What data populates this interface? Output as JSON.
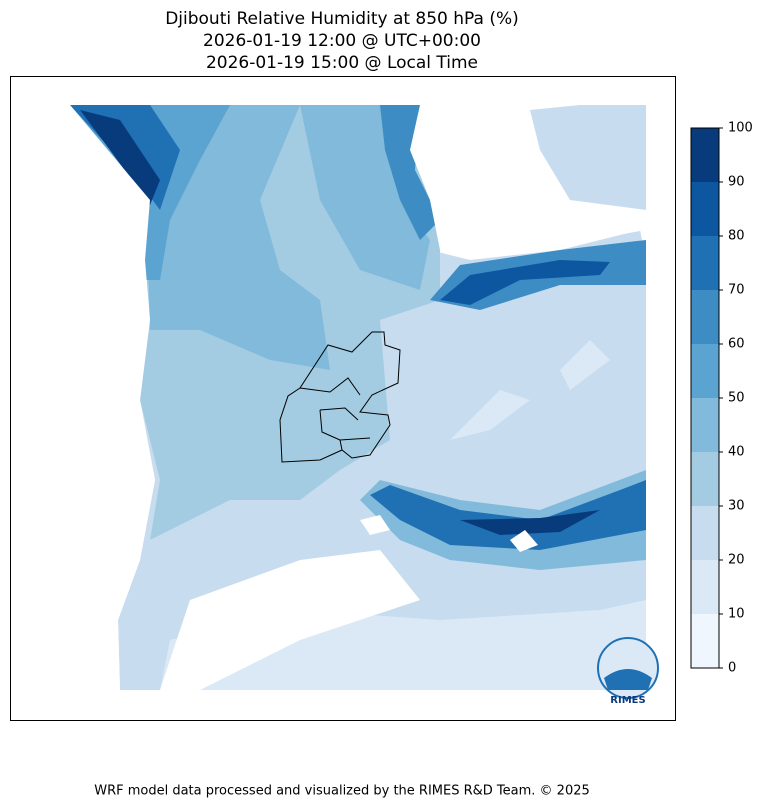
{
  "title": [
    "Djibouti Relative Humidity at 850 hPa (%)",
    "2026-01-19 12:00 @ UTC+00:00",
    "2026-01-19 15:00 @ Local Time"
  ],
  "colorbar": {
    "levels": [
      0,
      10,
      20,
      30,
      40,
      50,
      60,
      70,
      80,
      90,
      100
    ],
    "colors": [
      "#f0f6fd",
      "#dbe9f6",
      "#c7dcef",
      "#a3cce3",
      "#82badb",
      "#5ba3d0",
      "#3d8cc4",
      "#2070b4",
      "#0d56a0",
      "#083b7c"
    ]
  },
  "logo": "RIMES",
  "footer": "WRF model data processed and visualized by the RIMES R&D Team. © 2025"
}
